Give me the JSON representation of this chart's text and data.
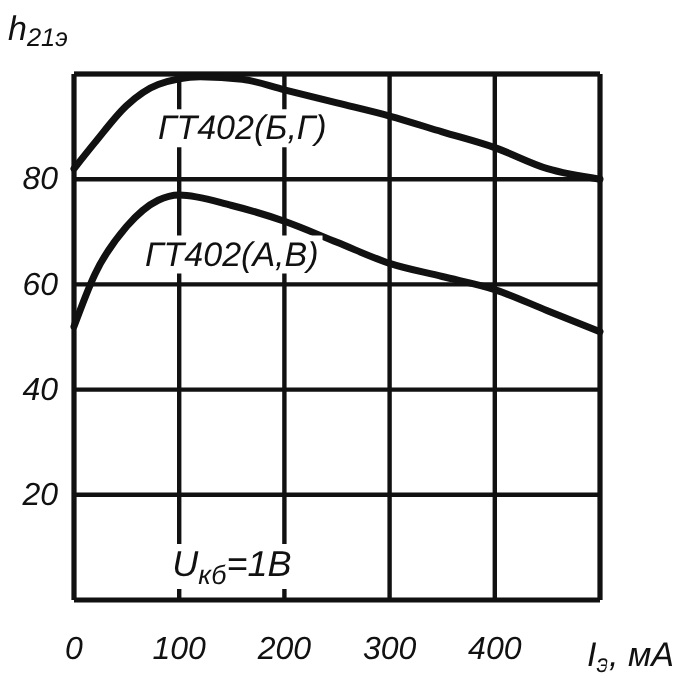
{
  "chart_data": {
    "type": "line",
    "xlabel": "I$_{э}$, мА",
    "ylabel": "h$_{21э}$",
    "xlim": [
      0,
      500
    ],
    "ylim": [
      0,
      100
    ],
    "xticks": [
      0,
      100,
      200,
      300,
      400,
      {
        "value": 500,
        "label": null
      }
    ],
    "yticks": [
      20,
      40,
      60,
      80,
      {
        "value": 100,
        "label": null
      }
    ],
    "grid": true,
    "legend": false,
    "marker": "none",
    "line_style": "solid",
    "annotations": [
      "U$_{кб}$=1В"
    ],
    "series": [
      {
        "name": "ГТ402(Б,Г)",
        "color": "#111111",
        "x": [
          0,
          20,
          50,
          80,
          120,
          160,
          200,
          250,
          300,
          350,
          400,
          450,
          500
        ],
        "values": [
          82,
          87,
          94,
          98,
          99.5,
          99,
          97,
          94.5,
          92,
          89,
          86,
          82,
          80
        ]
      },
      {
        "name": "ГТ402(А,В)",
        "color": "#111111",
        "x": [
          0,
          20,
          50,
          80,
          100,
          150,
          200,
          250,
          300,
          350,
          400,
          450,
          500
        ],
        "values": [
          52,
          62,
          71,
          76,
          77,
          75,
          72,
          68,
          64,
          61.5,
          59,
          55,
          51
        ]
      }
    ]
  }
}
